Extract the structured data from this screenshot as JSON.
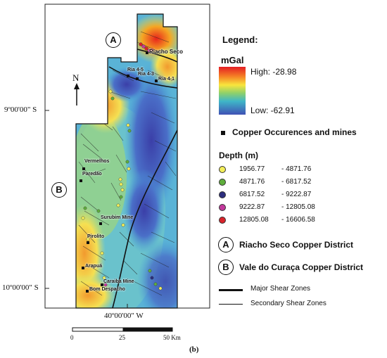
{
  "map": {
    "district_a_label": "A",
    "district_b_label": "B",
    "north_label": "N",
    "lat_9": "9º00'00\" S",
    "lat_10": "10º00'00\" S",
    "lon_40": "40º00'00\" W",
    "sites": [
      {
        "name": "Riacho Seco"
      },
      {
        "name": "Ria 4-5"
      },
      {
        "name": "Ria 4-3"
      },
      {
        "name": "Ria 4-1"
      },
      {
        "name": "Vermelhos"
      },
      {
        "name": "Paredão"
      },
      {
        "name": "Surubim Mine"
      },
      {
        "name": "Pirolito"
      },
      {
        "name": "Arapuá"
      },
      {
        "name": "Caraiba Mine"
      },
      {
        "name": "Bom Despacho"
      }
    ]
  },
  "scale_bar": {
    "ticks": [
      "0",
      "25",
      "50 Km"
    ]
  },
  "caption": "(b)",
  "legend": {
    "title": "Legend:",
    "unit": "mGal",
    "high": "High: -28.98",
    "low": "Low: -62.91",
    "copper_label": "Copper Occurences and mines",
    "depth_title": "Depth (m)",
    "depth_ranges": [
      {
        "from": "1956.77",
        "to": "- 4871.76",
        "color": "#f3ee5a"
      },
      {
        "from": "4871.76",
        "to": "- 6817.52",
        "color": "#5fae3c"
      },
      {
        "from": "6817.52",
        "to": "- 9222.87",
        "color": "#2c2d7e"
      },
      {
        "from": "9222.87",
        "to": "- 12805.08",
        "color": "#c2399c"
      },
      {
        "from": "12805.08",
        "to": "- 16606.58",
        "color": "#d8232a"
      }
    ],
    "district_a": "Riacho Seco Copper District",
    "district_b": "Vale do Curaça Copper District",
    "major_shear": "Major Shear Zones",
    "secondary_shear": "Secondary Shear Zones"
  }
}
